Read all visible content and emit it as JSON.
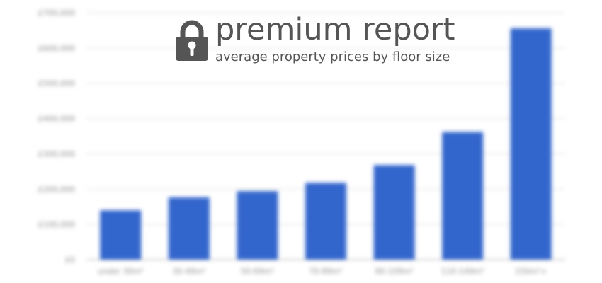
{
  "overlay": {
    "title": "premium report",
    "subtitle": "average property prices by floor size",
    "icon": "lock-icon",
    "text_color": "#555555",
    "icon_color": "#555555"
  },
  "chart_data": {
    "type": "bar",
    "title": "",
    "xlabel": "",
    "ylabel": "",
    "categories": [
      "under 30m²",
      "30-49m²",
      "50-69m²",
      "70-89m²",
      "90-109m²",
      "110-149m²",
      "150m²+"
    ],
    "values": [
      140000,
      177000,
      194000,
      218000,
      268000,
      362000,
      656000
    ],
    "ylim": [
      0,
      700000
    ],
    "yticks": [
      0,
      100000,
      200000,
      300000,
      400000,
      500000,
      600000,
      700000
    ],
    "ytick_labels": [
      "£0",
      "£100,000",
      "£200,000",
      "£300,000",
      "£400,000",
      "£500,000",
      "£600,000",
      "£700,000"
    ],
    "grid": true,
    "bar_color": "#3366cc",
    "grid_color": "#e6e6e6"
  }
}
